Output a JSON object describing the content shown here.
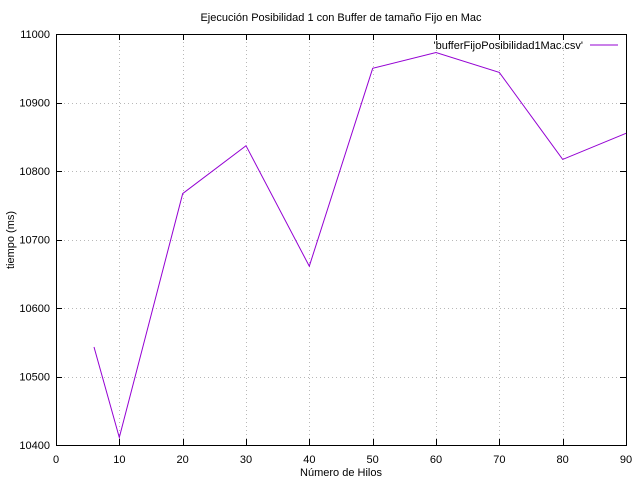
{
  "chart_data": {
    "type": "line",
    "title": "Ejecución Posibilidad 1 con Buffer de tamaño Fijo en Mac",
    "xlabel": "Número de Hilos",
    "ylabel": "tiempo (ms)",
    "xlim": [
      0,
      90
    ],
    "ylim": [
      10400,
      11000
    ],
    "xticks": [
      0,
      10,
      20,
      30,
      40,
      50,
      60,
      70,
      80,
      90
    ],
    "yticks": [
      10400,
      10500,
      10600,
      10700,
      10800,
      10900,
      11000
    ],
    "grid": true,
    "legend_position": "top-right",
    "series": [
      {
        "name": "'bufferFijoPosibilidad1Mac.csv'",
        "color": "#9400d3",
        "x": [
          6,
          10,
          20,
          30,
          40,
          50,
          60,
          70,
          80,
          90
        ],
        "y": [
          10543,
          10411,
          10767,
          10837,
          10661,
          10950,
          10973,
          10944,
          10817,
          10855
        ]
      }
    ]
  }
}
